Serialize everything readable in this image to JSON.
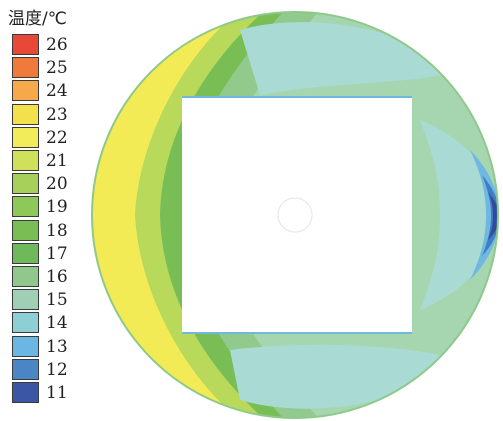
{
  "legend": {
    "title": "温度/℃",
    "labels": [
      "26",
      "25",
      "24",
      "23",
      "22",
      "21",
      "20",
      "19",
      "18",
      "17",
      "16",
      "15",
      "14",
      "13",
      "12",
      "11"
    ],
    "colors": [
      "#e84838",
      "#f07a3a",
      "#f6a94a",
      "#f3e04d",
      "#f2ec5a",
      "#cfe05a",
      "#a7d05a",
      "#8ec858",
      "#79bd54",
      "#6fb95c",
      "#8fc78d",
      "#9fd0b5",
      "#8dcfd4",
      "#6bb7e4",
      "#4a86c6",
      "#3a56a4"
    ]
  },
  "field": {
    "palette": {
      "outer": "#e8ee6a",
      "band_yellow": "#f3eb55",
      "band_lime": "#b8d95a",
      "band_green": "#78be55",
      "mid_green": "#92c98c",
      "pale_green": "#a5d6b0",
      "cyan": "#a9dbd4",
      "blue_light": "#6fb8e0",
      "blue": "#3f7dc4",
      "blue_dark": "#334a9c"
    }
  }
}
